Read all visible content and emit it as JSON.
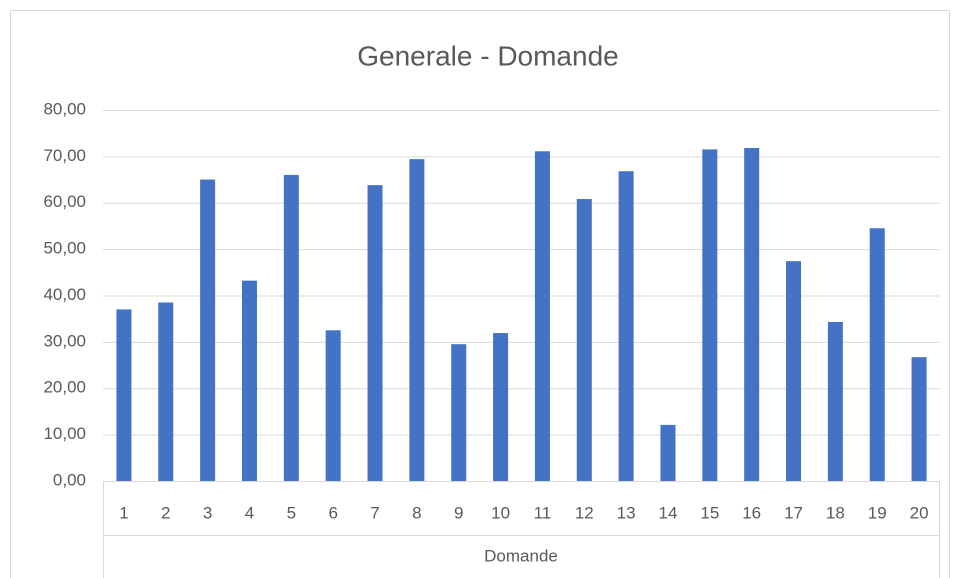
{
  "chart_data": {
    "type": "bar",
    "title": "Generale - Domande",
    "x_label": "Domande",
    "categories": [
      "1",
      "2",
      "3",
      "4",
      "5",
      "6",
      "7",
      "8",
      "9",
      "10",
      "11",
      "12",
      "13",
      "14",
      "15",
      "16",
      "17",
      "18",
      "19",
      "20"
    ],
    "values": [
      37,
      38.5,
      65,
      43.2,
      66,
      32.5,
      63.8,
      69.4,
      29.5,
      31.9,
      71.1,
      60.8,
      66.8,
      12.1,
      71.5,
      71.8,
      47.4,
      34.3,
      54.5,
      26.7
    ],
    "color": "#4472c4",
    "ylim": [
      0,
      80
    ],
    "yticks": [
      {
        "value": 0,
        "label": "0,00"
      },
      {
        "value": 10,
        "label": "10,00"
      },
      {
        "value": 20,
        "label": "20,00"
      },
      {
        "value": 30,
        "label": "30,00"
      },
      {
        "value": 40,
        "label": "40,00"
      },
      {
        "value": 50,
        "label": "50,00"
      },
      {
        "value": 60,
        "label": "60,00"
      },
      {
        "value": 70,
        "label": "70,00"
      },
      {
        "value": 80,
        "label": "80,00"
      }
    ],
    "grid": true
  }
}
